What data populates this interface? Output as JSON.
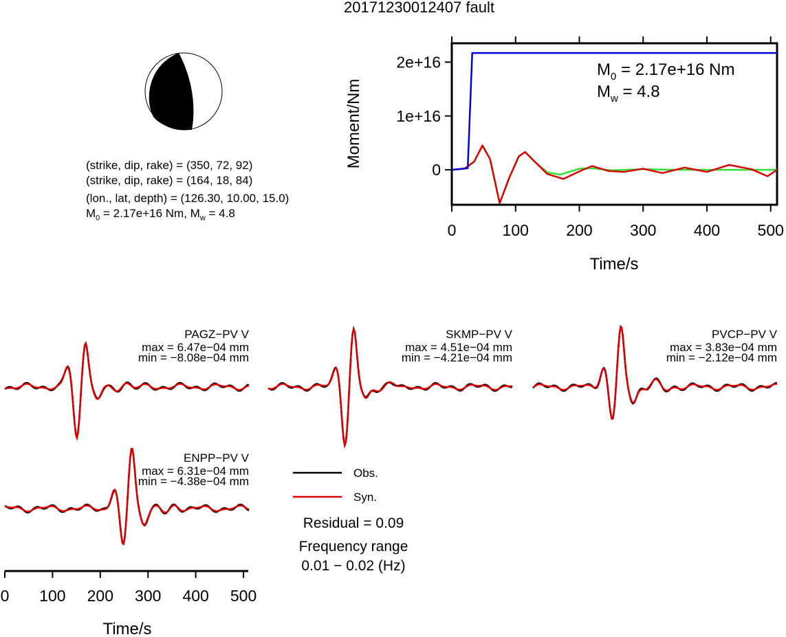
{
  "title": "20171230012407 fault",
  "mechanism": {
    "plane1": "(strike, dip, rake) = (350, 72, 92)",
    "plane2": "(strike, dip, rake) = (164, 18, 84)",
    "location": "(lon., lat, depth) = (126.30, 10.00, 15.0)",
    "m0_text": "M",
    "m0_sub": "0",
    "m0_rest": " = 2.17e+16 Nm, M",
    "mw_sub": "w",
    "mw_rest": " = 4.8"
  },
  "moment_plot": {
    "ylabel": "Moment/Nm",
    "xlabel": "Time/s",
    "yticks": [
      "0",
      "1e+16",
      "2e+16"
    ],
    "xticks": [
      "0",
      "100",
      "200",
      "300",
      "400",
      "500"
    ],
    "m0_label": "M",
    "m0_sub": "0",
    "m0_value": " = 2.17e+16 Nm",
    "mw_label": "M",
    "mw_sub": "w",
    "mw_value": " = 4.8",
    "colors": {
      "moment": "#0000dd",
      "rate_obs": "#dd0000",
      "rate_syn": "#33dd33"
    }
  },
  "legend": {
    "obs": "Obs.",
    "syn": "Syn.",
    "residual": "Residual = 0.09",
    "freq_title": "Frequency range",
    "freq_value": "0.01 − 0.02 (Hz)",
    "obs_color": "#000000",
    "syn_color": "#dd0000"
  },
  "waveform_axis": {
    "xlabel": "Time/s",
    "xticks": [
      "0",
      "100",
      "200",
      "300",
      "400",
      "500"
    ]
  },
  "stations": [
    {
      "name": "PAGZ−PV V",
      "max": "max = 6.47e−04 mm",
      "min": "min = −8.08e−04 mm"
    },
    {
      "name": "SKMP−PV V",
      "max": "max = 4.51e−04 mm",
      "min": "min = −4.21e−04 mm"
    },
    {
      "name": "PVCP−PV V",
      "max": "max = 3.83e−04 mm",
      "min": "min = −2.12e−04 mm"
    },
    {
      "name": "ENPP−PV V",
      "max": "max = 6.31e−04 mm",
      "min": "min = −4.38e−04 mm"
    }
  ],
  "chart_data": [
    {
      "type": "line",
      "xlabel": "Time/s",
      "ylabel": "Moment/Nm",
      "xlim": [
        0,
        510
      ],
      "ylim": [
        -6500000000000000.0,
        2.35e+16
      ],
      "series": [
        {
          "x": [
            0,
            25,
            32,
            510
          ],
          "values": [
            0,
            300000000000000.0,
            2.17e+16,
            2.17e+16
          ],
          "color": "#0000dd"
        },
        {
          "x": [
            0,
            20,
            35,
            48,
            60,
            75,
            90,
            105,
            115,
            130,
            150,
            175,
            200,
            220,
            245,
            270,
            300,
            330,
            365,
            400,
            435,
            470,
            495,
            510
          ],
          "values": [
            0,
            200000000000000.0,
            1500000000000000.0,
            4500000000000000.0,
            2000000000000000.0,
            -6200000000000000.0,
            -1500000000000000.0,
            2500000000000000.0,
            3300000000000000.0,
            1500000000000000.0,
            -800000000000000.0,
            -1700000000000000.0,
            -300000000000000.0,
            700000000000000.0,
            -200000000000000.0,
            -400000000000000.0,
            200000000000000.0,
            -600000000000000.0,
            400000000000000.0,
            -400000000000000.0,
            900000000000000.0,
            100000000000000.0,
            -1200000000000000.0,
            0.0
          ],
          "color": "#dd0000"
        },
        {
          "x": [
            0,
            20,
            35,
            48,
            60,
            75,
            90,
            105,
            115,
            130,
            150,
            170,
            200,
            220,
            250,
            300,
            350,
            510
          ],
          "values": [
            0,
            200000000000000.0,
            1500000000000000.0,
            4500000000000000.0,
            2000000000000000.0,
            -6200000000000000.0,
            -1500000000000000.0,
            2500000000000000.0,
            3300000000000000.0,
            1500000000000000.0,
            -500000000000000.0,
            -900000000000000.0,
            200000000000000.0,
            300000000000000.0,
            -100000000000000.0,
            100000000000000.0,
            0,
            0
          ],
          "color": "#33dd33"
        }
      ]
    }
  ]
}
